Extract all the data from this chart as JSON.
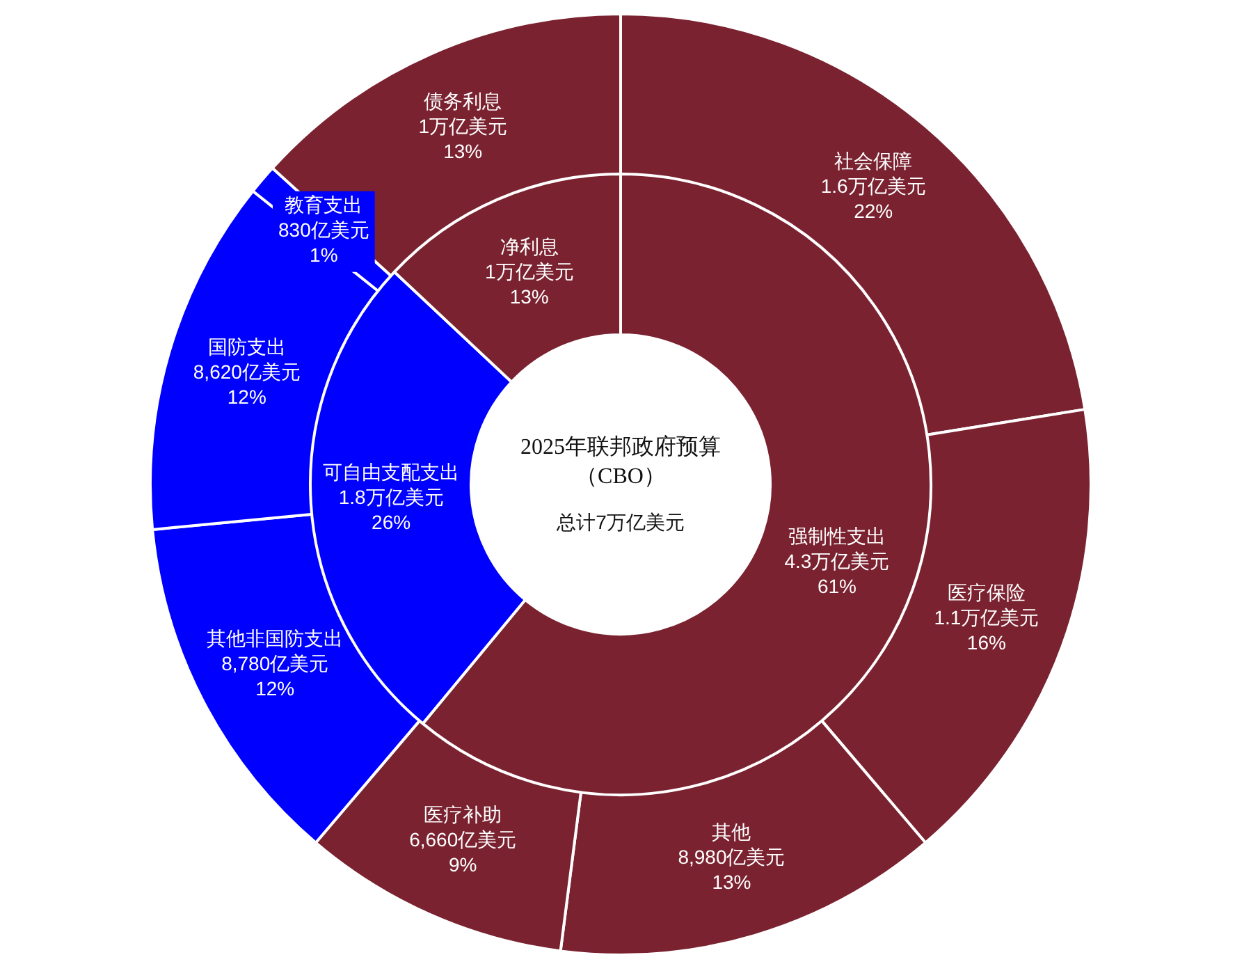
{
  "chart_data": [
    {
      "type": "donut",
      "title": "2025年联邦政府预算（CBO）",
      "subtitle": "总计7万亿美元",
      "categories": [
        "强制性支出",
        "可自由支配支出",
        "净利息"
      ],
      "values": [
        61,
        26,
        13
      ],
      "value_labels": [
        "4.3万亿美元\n61%",
        "1.8万亿美元\n26%",
        "1万亿美元\n13%"
      ],
      "colors": [
        "#7a2230",
        "#0000ff",
        "#7a2230"
      ],
      "legend": false
    },
    {
      "type": "donut",
      "categories": [
        "社会保障",
        "医疗保险",
        "其他",
        "医疗补助",
        "其他非国防支出",
        "国防支出",
        "教育支出",
        "债务利息"
      ],
      "values": [
        22,
        16,
        13,
        9,
        12,
        12,
        1,
        13
      ],
      "value_labels": [
        "1.6万亿美元\n22%",
        "1.1万亿美元\n16%",
        "8,980亿美元\n13%",
        "6,660亿美元\n9%",
        "8,780亿美元\n12%",
        "8,620亿美元\n12%",
        "830亿美元\n1%",
        "1万亿美元\n13%"
      ],
      "colors": [
        "#7a2230",
        "#7a2230",
        "#7a2230",
        "#7a2230",
        "#0000ff",
        "#0000ff",
        "#0000ff",
        "#7a2230"
      ],
      "legend": false
    }
  ]
}
